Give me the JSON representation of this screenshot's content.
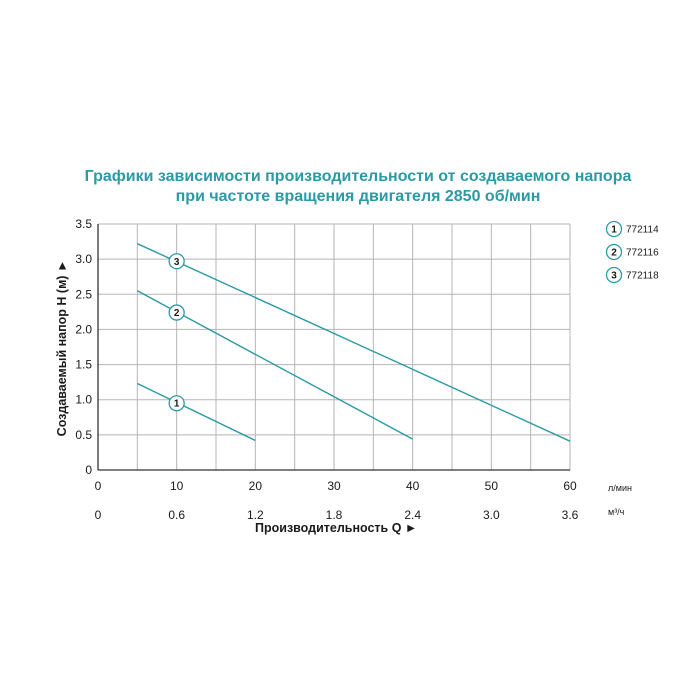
{
  "chart_data": {
    "type": "line",
    "title": "Графики зависимости производительности от создаваемого напора",
    "subtitle": "при частоте вращения двигателя 2850 об/мин",
    "ylabel": "Создаваемый напор Н (м) ►",
    "xlabel": "Производительность Q ►",
    "x_unit_primary": "л/мин",
    "x_unit_secondary": "м³/ч",
    "xlim": [
      0,
      60
    ],
    "ylim": [
      0,
      3.5
    ],
    "x_ticks": [
      "0",
      "10",
      "20",
      "30",
      "40",
      "50",
      "60"
    ],
    "x_ticks_secondary": [
      "0",
      "0.6",
      "1.2",
      "1.8",
      "2.4",
      "3.0",
      "3.6"
    ],
    "y_ticks": [
      "0",
      "0.5",
      "1.0",
      "1.5",
      "2.0",
      "2.5",
      "3.0",
      "3.5"
    ],
    "grid": true,
    "legend_position": "right",
    "series": [
      {
        "name": "772114",
        "marker": "1",
        "x": [
          5,
          20
        ],
        "y": [
          1.23,
          0.42
        ]
      },
      {
        "name": "772116",
        "marker": "2",
        "x": [
          5,
          40
        ],
        "y": [
          2.55,
          0.44
        ]
      },
      {
        "name": "772118",
        "marker": "3",
        "x": [
          5,
          60
        ],
        "y": [
          3.22,
          0.41
        ]
      }
    ]
  },
  "colors": {
    "title": "#2a9aa5",
    "series_line": "#2a9aa5",
    "grid": "#b5b5b5",
    "axis": "#333333"
  }
}
